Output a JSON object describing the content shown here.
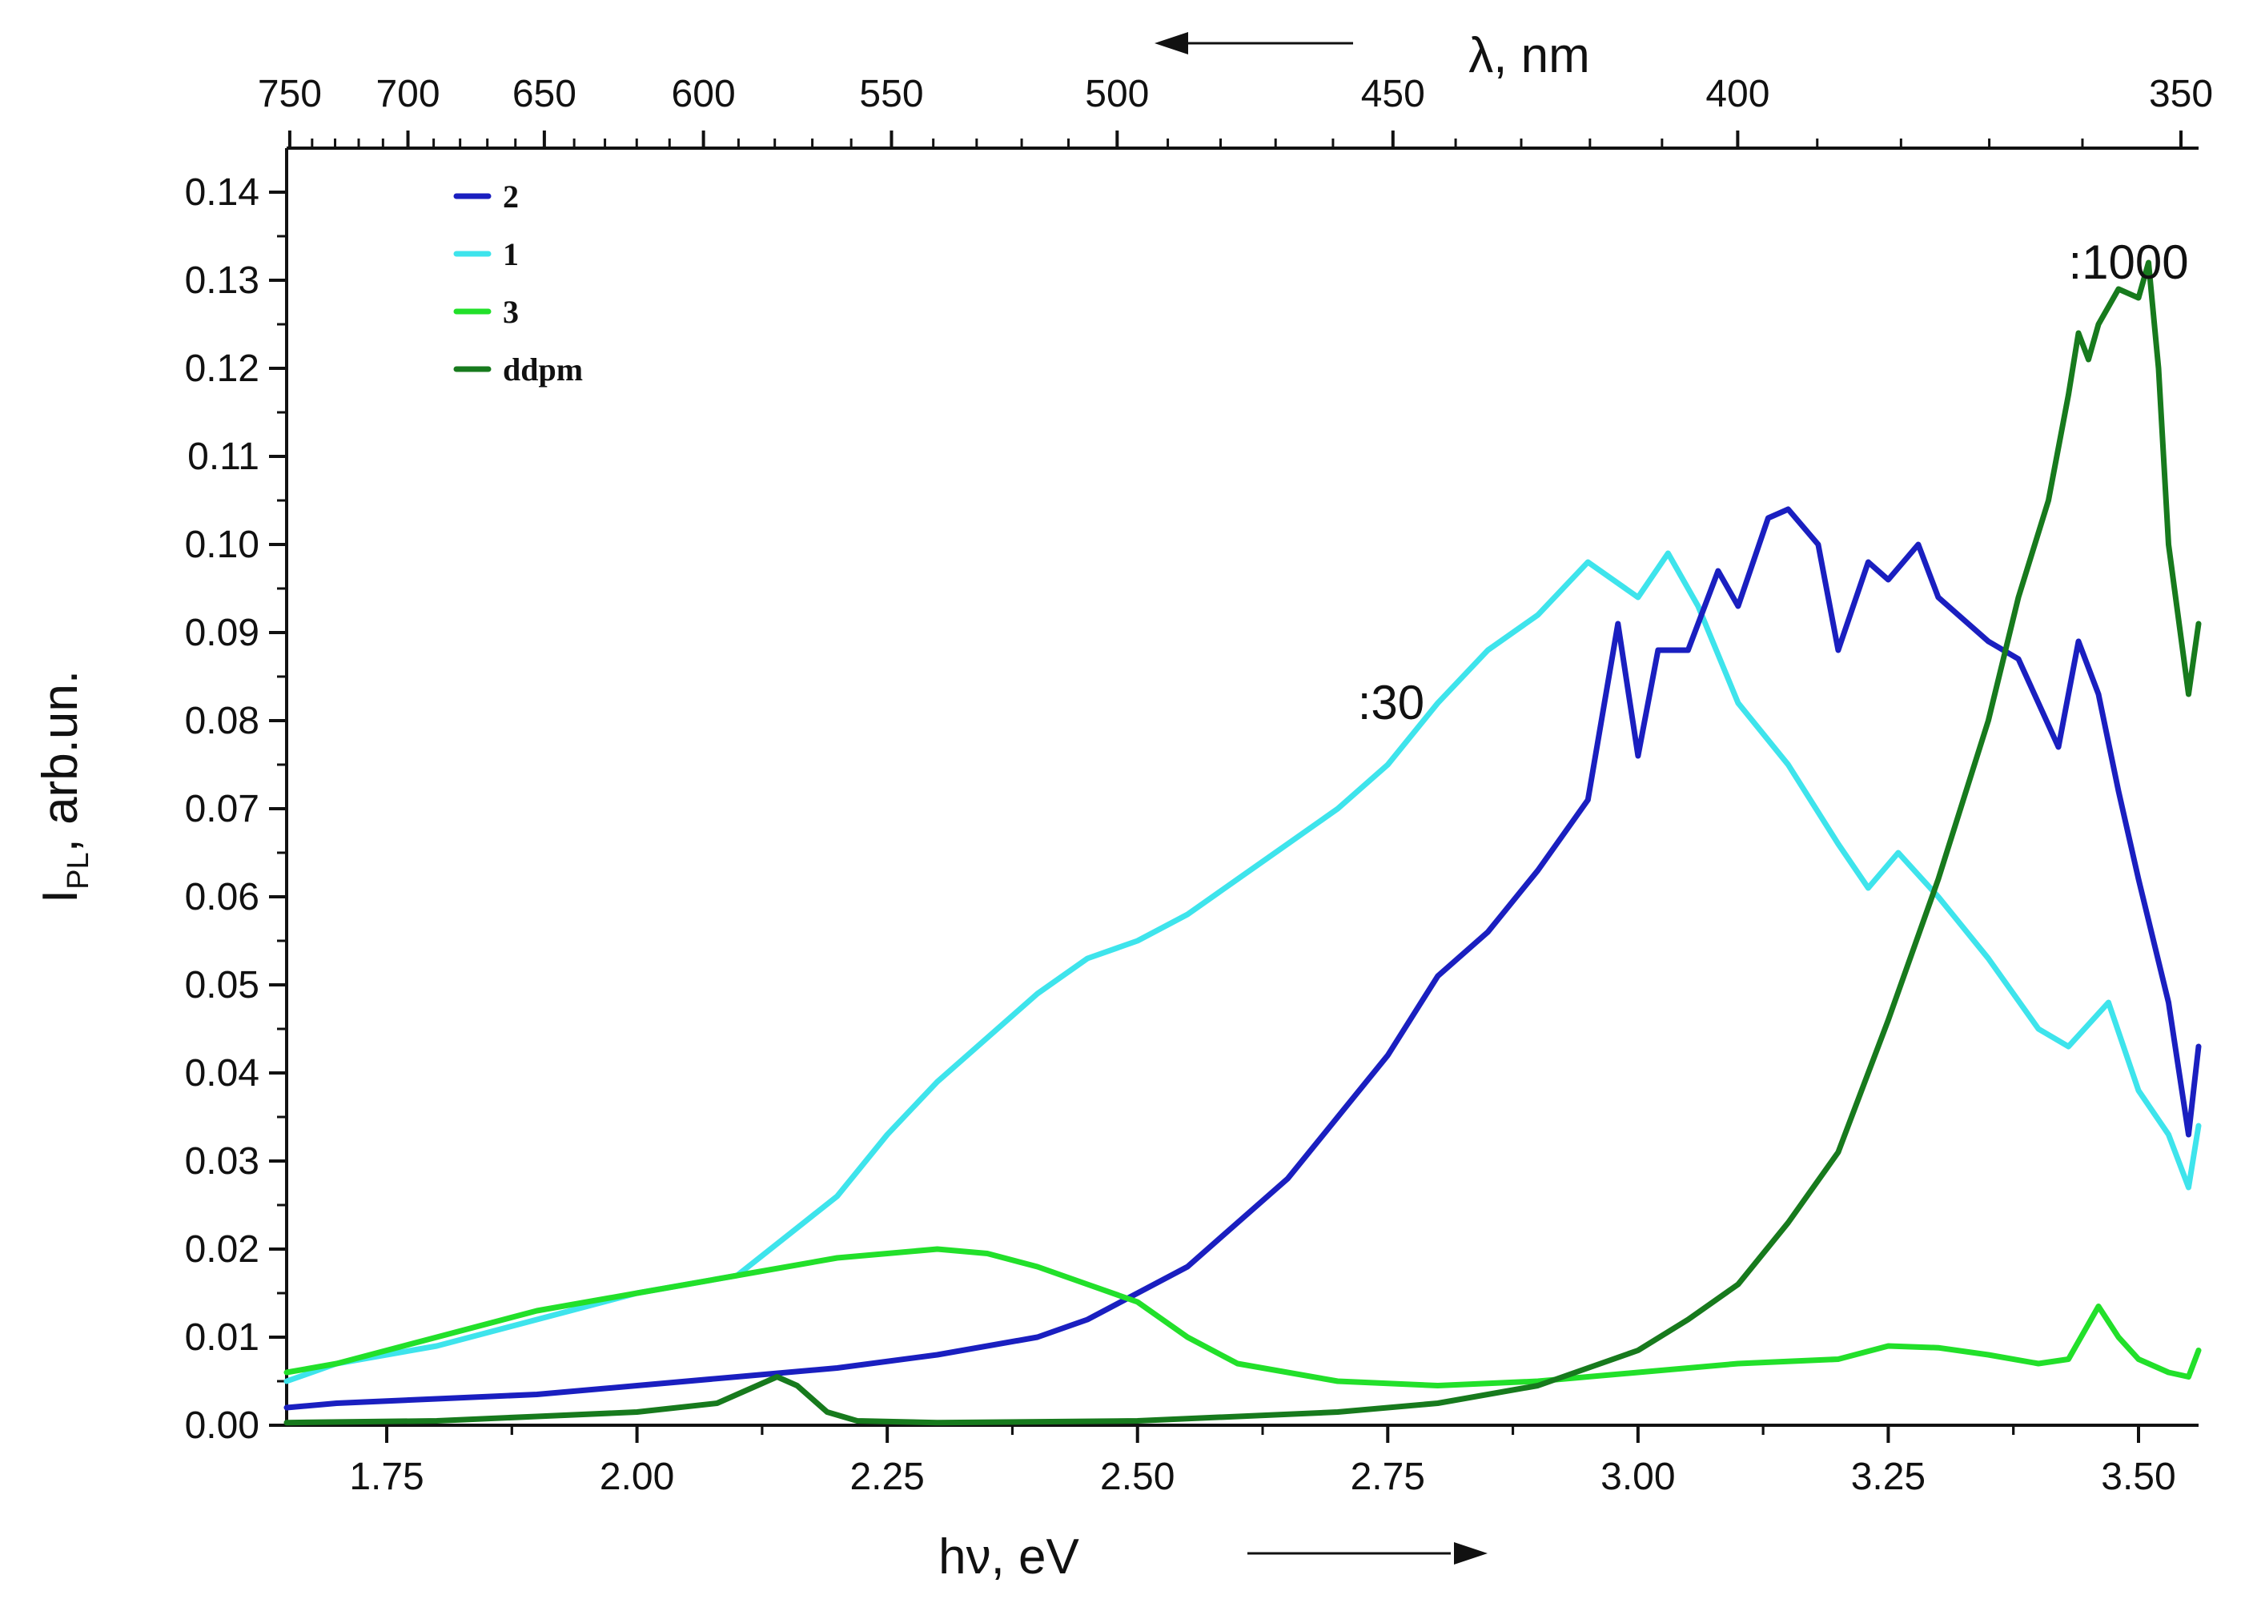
{
  "chart_data": {
    "type": "line",
    "title": "",
    "xlabel": "hν, eV",
    "ylabel_main": "I",
    "ylabel_sub": "PL",
    "ylabel_suffix": ", arb.un.",
    "top_axis_label": "λ, nm",
    "xlim": [
      1.65,
      3.56
    ],
    "ylim": [
      0,
      0.145
    ],
    "x_ticks": [
      1.75,
      2.0,
      2.25,
      2.5,
      2.75,
      3.0,
      3.25,
      3.5
    ],
    "x_tick_labels": [
      "1.75",
      "2.00",
      "2.25",
      "2.50",
      "2.75",
      "3.00",
      "3.25",
      "3.50"
    ],
    "y_ticks": [
      0.0,
      0.01,
      0.02,
      0.03,
      0.04,
      0.05,
      0.06,
      0.07,
      0.08,
      0.09,
      0.1,
      0.11,
      0.12,
      0.13,
      0.14
    ],
    "y_tick_labels": [
      "0.00",
      "0.01",
      "0.02",
      "0.03",
      "0.04",
      "0.05",
      "0.06",
      "0.07",
      "0.08",
      "0.09",
      "0.10",
      "0.11",
      "0.12",
      "0.13",
      "0.14"
    ],
    "top_ticks_nm": [
      750,
      700,
      650,
      600,
      550,
      500,
      450,
      400,
      350
    ],
    "top_tick_labels": [
      "750",
      "700",
      "650",
      "600",
      "550",
      "500",
      "450",
      "400",
      "350"
    ],
    "legend": [
      {
        "name": "2",
        "color": "#1a1fc0"
      },
      {
        "name": "1",
        "color": "#3ee4ec"
      },
      {
        "name": "3",
        "color": "#22e02a"
      },
      {
        "name": "ddpm",
        "color": "#177a1d"
      }
    ],
    "annotations": [
      {
        "text": ":30",
        "x": 2.72,
        "y": 0.082
      },
      {
        "text": ":1000",
        "x": 3.43,
        "y": 0.132
      }
    ],
    "series": [
      {
        "name": "1",
        "color": "#3ee4ec",
        "x": [
          1.65,
          1.7,
          1.8,
          1.9,
          2.0,
          2.1,
          2.2,
          2.25,
          2.3,
          2.35,
          2.4,
          2.45,
          2.5,
          2.55,
          2.6,
          2.65,
          2.7,
          2.75,
          2.8,
          2.85,
          2.9,
          2.95,
          3.0,
          3.03,
          3.06,
          3.1,
          3.15,
          3.2,
          3.23,
          3.26,
          3.3,
          3.35,
          3.4,
          3.43,
          3.47,
          3.5,
          3.53,
          3.55,
          3.56
        ],
        "values": [
          0.005,
          0.007,
          0.009,
          0.012,
          0.015,
          0.017,
          0.026,
          0.033,
          0.039,
          0.044,
          0.049,
          0.053,
          0.055,
          0.058,
          0.062,
          0.066,
          0.07,
          0.075,
          0.082,
          0.088,
          0.092,
          0.098,
          0.094,
          0.099,
          0.093,
          0.082,
          0.075,
          0.066,
          0.061,
          0.065,
          0.06,
          0.053,
          0.045,
          0.043,
          0.048,
          0.038,
          0.033,
          0.027,
          0.034
        ]
      },
      {
        "name": "2",
        "color": "#1a1fc0",
        "x": [
          1.65,
          1.7,
          1.8,
          1.9,
          2.0,
          2.1,
          2.2,
          2.3,
          2.4,
          2.45,
          2.5,
          2.55,
          2.6,
          2.65,
          2.7,
          2.75,
          2.8,
          2.85,
          2.9,
          2.95,
          2.98,
          3.0,
          3.02,
          3.05,
          3.08,
          3.1,
          3.13,
          3.15,
          3.18,
          3.2,
          3.23,
          3.25,
          3.28,
          3.3,
          3.35,
          3.38,
          3.42,
          3.44,
          3.46,
          3.48,
          3.5,
          3.53,
          3.55,
          3.56
        ],
        "values": [
          0.002,
          0.0025,
          0.003,
          0.0035,
          0.0045,
          0.0055,
          0.0065,
          0.008,
          0.01,
          0.012,
          0.015,
          0.018,
          0.023,
          0.028,
          0.035,
          0.042,
          0.051,
          0.056,
          0.063,
          0.071,
          0.091,
          0.076,
          0.088,
          0.088,
          0.097,
          0.093,
          0.103,
          0.104,
          0.1,
          0.088,
          0.098,
          0.096,
          0.1,
          0.094,
          0.089,
          0.087,
          0.077,
          0.089,
          0.083,
          0.072,
          0.062,
          0.048,
          0.033,
          0.043
        ]
      },
      {
        "name": "3",
        "color": "#22e02a",
        "x": [
          1.65,
          1.7,
          1.8,
          1.9,
          2.0,
          2.1,
          2.2,
          2.25,
          2.3,
          2.35,
          2.4,
          2.45,
          2.5,
          2.55,
          2.6,
          2.7,
          2.8,
          2.9,
          3.0,
          3.1,
          3.2,
          3.25,
          3.3,
          3.35,
          3.4,
          3.43,
          3.46,
          3.48,
          3.5,
          3.53,
          3.55,
          3.56
        ],
        "values": [
          0.006,
          0.007,
          0.01,
          0.013,
          0.015,
          0.017,
          0.019,
          0.0195,
          0.02,
          0.0195,
          0.018,
          0.016,
          0.014,
          0.01,
          0.007,
          0.005,
          0.0045,
          0.005,
          0.006,
          0.007,
          0.0075,
          0.009,
          0.0088,
          0.008,
          0.007,
          0.0075,
          0.0135,
          0.01,
          0.0075,
          0.006,
          0.0055,
          0.0085
        ]
      },
      {
        "name": "ddpm",
        "color": "#177a1d",
        "x": [
          1.65,
          1.8,
          1.9,
          2.0,
          2.08,
          2.12,
          2.14,
          2.16,
          2.19,
          2.22,
          2.3,
          2.5,
          2.7,
          2.8,
          2.9,
          2.95,
          3.0,
          3.05,
          3.1,
          3.15,
          3.2,
          3.25,
          3.3,
          3.35,
          3.38,
          3.41,
          3.43,
          3.44,
          3.45,
          3.46,
          3.48,
          3.5,
          3.51,
          3.52,
          3.53,
          3.55,
          3.56
        ],
        "values": [
          0.0003,
          0.0005,
          0.001,
          0.0015,
          0.0025,
          0.0045,
          0.0055,
          0.0045,
          0.0015,
          0.0005,
          0.0003,
          0.0005,
          0.0015,
          0.0025,
          0.0045,
          0.0065,
          0.0085,
          0.012,
          0.016,
          0.023,
          0.031,
          0.046,
          0.062,
          0.08,
          0.094,
          0.105,
          0.117,
          0.124,
          0.121,
          0.125,
          0.129,
          0.128,
          0.132,
          0.12,
          0.1,
          0.083,
          0.091
        ]
      }
    ]
  }
}
